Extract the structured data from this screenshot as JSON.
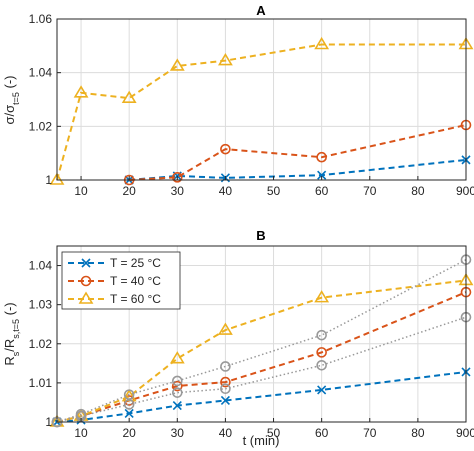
{
  "chart_data": [
    {
      "type": "line",
      "title": "A",
      "ylabel": "σ/σ_t=5 (-)",
      "x_ticks": [
        "10",
        "20",
        "30",
        "40",
        "50",
        "60",
        "70",
        "80",
        "900"
      ],
      "y_ticks": [
        "1",
        "1.02",
        "1.04",
        "1.06"
      ],
      "ylim": [
        1,
        1.06
      ],
      "grid": true,
      "series": [
        {
          "color": "#0072BD",
          "marker": "x",
          "line": "dashed",
          "points": [
            [
              20,
              1.0
            ],
            [
              30,
              1.0015
            ],
            [
              40,
              1.0008
            ],
            [
              60,
              1.0018
            ],
            [
              90,
              1.0075
            ]
          ]
        },
        {
          "color": "#D95319",
          "marker": "o",
          "line": "dashed",
          "points": [
            [
              20,
              1.0
            ],
            [
              30,
              1.001
            ],
            [
              40,
              1.0115
            ],
            [
              60,
              1.0085
            ],
            [
              90,
              1.0205
            ]
          ]
        },
        {
          "color": "#EDB120",
          "marker": "^",
          "line": "dashed",
          "points": [
            [
              5,
              1.0
            ],
            [
              10,
              1.0325
            ],
            [
              20,
              1.0305
            ],
            [
              30,
              1.0425
            ],
            [
              40,
              1.0445
            ],
            [
              60,
              1.0505
            ],
            [
              90,
              1.0505
            ]
          ]
        }
      ]
    },
    {
      "type": "line",
      "title": "B",
      "xlabel": "t (min)",
      "ylabel": "R_s/R_s,t=5 (-)",
      "x_ticks": [
        "10",
        "20",
        "30",
        "40",
        "50",
        "60",
        "70",
        "80",
        "900"
      ],
      "y_ticks": [
        "1",
        "1.01",
        "1.02",
        "1.03",
        "1.04"
      ],
      "ylim": [
        1,
        1.045
      ],
      "grid": true,
      "legend_position": "top-left",
      "series": [
        {
          "name": "T = 25 °C",
          "color": "#0072BD",
          "marker": "x",
          "line": "dashed",
          "points": [
            [
              5,
              1.0
            ],
            [
              10,
              1.0005
            ],
            [
              20,
              1.0022
            ],
            [
              30,
              1.0042
            ],
            [
              40,
              1.0055
            ],
            [
              60,
              1.0082
            ],
            [
              90,
              1.0128
            ]
          ]
        },
        {
          "name": "T = 40 °C",
          "color": "#D95319",
          "marker": "o",
          "line": "dashed",
          "points": [
            [
              5,
              1.0
            ],
            [
              10,
              1.0015
            ],
            [
              20,
              1.0055
            ],
            [
              30,
              1.0092
            ],
            [
              40,
              1.0102
            ],
            [
              60,
              1.0178
            ],
            [
              90,
              1.0332
            ]
          ]
        },
        {
          "name": "T = 60 °C",
          "color": "#EDB120",
          "marker": "^",
          "line": "dashed",
          "points": [
            [
              5,
              1.0
            ],
            [
              10,
              1.0015
            ],
            [
              20,
              1.0065
            ],
            [
              30,
              1.0162
            ],
            [
              40,
              1.0235
            ],
            [
              60,
              1.0318
            ],
            [
              90,
              1.0362
            ]
          ]
        },
        {
          "color": "#999999",
          "marker": "o",
          "line": "dotted",
          "points": [
            [
              5,
              1.0
            ],
            [
              10,
              1.0015
            ],
            [
              20,
              1.0045
            ],
            [
              30,
              1.0075
            ],
            [
              40,
              1.0085
            ],
            [
              60,
              1.0145
            ],
            [
              90,
              1.0268
            ]
          ]
        },
        {
          "color": "#999999",
          "marker": "o",
          "line": "dotted",
          "points": [
            [
              5,
              1.0
            ],
            [
              10,
              1.002
            ],
            [
              20,
              1.007
            ],
            [
              30,
              1.0105
            ],
            [
              40,
              1.0142
            ],
            [
              60,
              1.0222
            ],
            [
              90,
              1.0415
            ]
          ]
        }
      ]
    }
  ]
}
